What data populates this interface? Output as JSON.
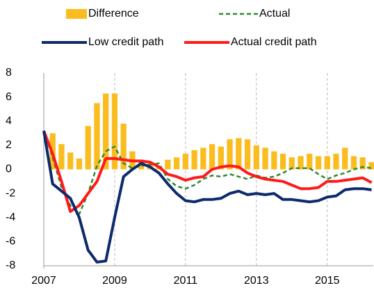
{
  "chart_data": {
    "type": "bar-line",
    "x": [
      2007,
      2007.25,
      2007.5,
      2007.75,
      2008,
      2008.25,
      2008.5,
      2008.75,
      2009,
      2009.25,
      2009.5,
      2009.75,
      2010,
      2010.25,
      2010.5,
      2010.75,
      2011,
      2011.25,
      2011.5,
      2011.75,
      2012,
      2012.25,
      2012.5,
      2012.75,
      2013,
      2013.25,
      2013.5,
      2013.75,
      2014,
      2014.25,
      2014.5,
      2014.75,
      2015,
      2015.25,
      2015.5,
      2015.75,
      2016,
      2016.25
    ],
    "series": [
      {
        "name": "Difference",
        "kind": "bar",
        "color": "#fbbc20",
        "values": [
          null,
          3.0,
          2.1,
          1.4,
          0.9,
          3.6,
          5.5,
          6.3,
          6.3,
          3.8,
          1.5,
          0.7,
          0.5,
          0.3,
          0.8,
          1.0,
          1.3,
          1.6,
          1.8,
          2.1,
          1.9,
          2.5,
          2.6,
          2.5,
          2.0,
          1.8,
          1.5,
          1.3,
          1.0,
          1.1,
          1.3,
          1.1,
          1.1,
          1.3,
          1.8,
          1.1,
          1.0,
          0.6
        ]
      },
      {
        "name": "Actual",
        "kind": "dashed",
        "color": "#2e8a2e",
        "values": [
          3.2,
          1.0,
          -1.5,
          -3.0,
          -3.7,
          -2.0,
          0.3,
          1.5,
          1.9,
          0.5,
          0.1,
          0.3,
          0.4,
          0.5,
          -0.8,
          -1.4,
          -1.6,
          -1.3,
          -0.8,
          -0.5,
          -0.6,
          -0.4,
          -0.6,
          -0.8,
          -0.5,
          -0.7,
          -0.6,
          -0.3,
          0.1,
          0.1,
          0.1,
          -0.4,
          -0.8,
          -0.5,
          -0.3,
          0.0,
          0.2,
          0.1
        ]
      },
      {
        "name": "Low credit path",
        "kind": "line",
        "color": "#0d2a6b",
        "values": [
          3.2,
          -1.2,
          -1.8,
          -2.4,
          -4.0,
          -6.7,
          -7.7,
          -7.6,
          -4.0,
          -0.6,
          0.0,
          0.5,
          0.2,
          -0.3,
          -1.2,
          -2.0,
          -2.6,
          -2.7,
          -2.5,
          -2.5,
          -2.4,
          -2.0,
          -1.8,
          -2.1,
          -2.0,
          -2.1,
          -2.0,
          -2.5,
          -2.5,
          -2.6,
          -2.7,
          -2.6,
          -2.3,
          -2.2,
          -1.7,
          -1.6,
          -1.6,
          -1.7
        ]
      },
      {
        "name": "Actual credit path",
        "kind": "line",
        "color": "#ff1a1a",
        "values": [
          3.2,
          1.3,
          -1.0,
          -3.5,
          -3.0,
          -2.0,
          -1.0,
          0.9,
          0.9,
          0.8,
          0.7,
          0.7,
          0.6,
          0.2,
          -0.4,
          -0.6,
          -0.9,
          -0.7,
          -0.6,
          0.0,
          0.2,
          0.3,
          0.2,
          -0.3,
          -0.6,
          -0.8,
          -0.9,
          -1.0,
          -1.3,
          -1.6,
          -1.6,
          -1.5,
          -1.0,
          -1.0,
          -0.9,
          -0.8,
          -0.7,
          -1.1
        ]
      }
    ],
    "xlim": [
      2007,
      2016.3
    ],
    "xticks": [
      2007,
      2009,
      2011,
      2013,
      2015
    ],
    "ylim": [
      -8,
      8
    ],
    "yticks": [
      -8,
      -6,
      -4,
      -2,
      0,
      2,
      4,
      6,
      8
    ],
    "grid": "x"
  }
}
